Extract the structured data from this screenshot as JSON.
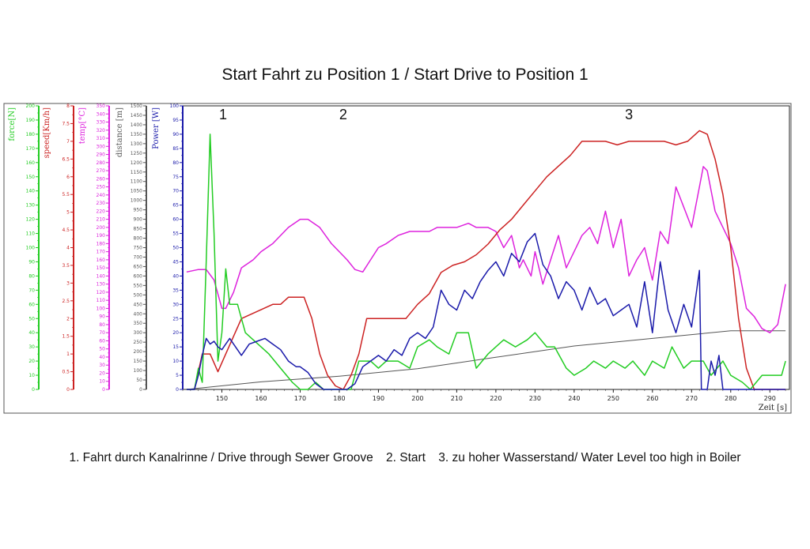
{
  "title": "Start Fahrt zu Position 1 / Start Drive to Position 1",
  "captions": [
    "1. Fahrt durch Kanalrinne / Drive through Sewer Groove",
    "2. Start",
    "3. zu hoher Wasserstand/ Water Level too high in  Boiler"
  ],
  "colors": {
    "force": "#22cc22",
    "speed": "#cc2222",
    "temp": "#dd22dd",
    "distance": "#555555",
    "power": "#1a1aaa"
  },
  "chart_data": {
    "type": "line",
    "xlabel": "Zeit [s]",
    "xlim": [
      140,
      295
    ],
    "xticks": [
      150,
      160,
      170,
      180,
      190,
      200,
      210,
      220,
      230,
      240,
      250,
      260,
      270,
      280,
      290
    ],
    "annotations": [
      {
        "text": "1",
        "x": 140
      },
      {
        "text": "2",
        "x": 181
      },
      {
        "text": "3",
        "x": 254
      }
    ],
    "axes": [
      {
        "key": "force",
        "label": "force[N]",
        "min": 0,
        "max": 200,
        "step": 10,
        "labelStep": 10
      },
      {
        "key": "speed",
        "label": "speed[Km/h]",
        "min": 0,
        "max": 8,
        "step": 0.5,
        "labelStep": 0.5
      },
      {
        "key": "temp",
        "label": "temp[°C]",
        "min": 0,
        "max": 350,
        "step": 10,
        "labelStep": 10
      },
      {
        "key": "distance",
        "label": "distance [m]",
        "min": 0,
        "max": 1500,
        "step": 50,
        "labelStep": 50
      },
      {
        "key": "power",
        "label": "Power [W]",
        "min": 0,
        "max": 100,
        "step": 5,
        "labelStep": 5
      }
    ],
    "series": [
      {
        "name": "force[N]",
        "key": "force",
        "x": [
          141,
          143,
          144,
          145,
          146,
          147,
          148,
          149,
          150,
          151,
          152,
          154,
          156,
          158,
          160,
          162,
          165,
          168,
          170,
          172,
          174,
          176,
          180,
          183,
          185,
          188,
          190,
          192,
          195,
          198,
          200,
          203,
          205,
          208,
          210,
          213,
          215,
          218,
          220,
          222,
          225,
          228,
          230,
          233,
          235,
          238,
          240,
          243,
          245,
          248,
          250,
          253,
          255,
          258,
          260,
          263,
          265,
          268,
          270,
          273,
          275,
          278,
          280,
          283,
          285,
          288,
          290,
          293,
          294
        ],
        "y": [
          0,
          0,
          15,
          5,
          90,
          180,
          110,
          20,
          40,
          85,
          60,
          60,
          40,
          35,
          30,
          25,
          15,
          5,
          0,
          0,
          5,
          0,
          0,
          0,
          20,
          20,
          15,
          20,
          20,
          15,
          30,
          35,
          30,
          25,
          40,
          40,
          15,
          25,
          30,
          35,
          30,
          35,
          40,
          30,
          30,
          15,
          10,
          15,
          20,
          15,
          20,
          15,
          20,
          10,
          20,
          15,
          30,
          15,
          20,
          20,
          10,
          20,
          10,
          5,
          0,
          10,
          10,
          10,
          20
        ]
      },
      {
        "name": "speed[Km/h]",
        "key": "speed",
        "x": [
          141,
          143,
          145,
          147,
          149,
          151,
          153,
          155,
          157,
          159,
          161,
          163,
          165,
          167,
          169,
          171,
          173,
          175,
          177,
          179,
          181,
          183,
          185,
          187,
          189,
          191,
          193,
          195,
          197,
          200,
          203,
          206,
          209,
          212,
          215,
          218,
          221,
          224,
          227,
          230,
          233,
          236,
          239,
          242,
          245,
          248,
          251,
          254,
          257,
          260,
          263,
          266,
          269,
          272,
          274,
          276,
          278,
          280,
          282,
          284,
          286,
          290,
          294
        ],
        "y": [
          0,
          0,
          1,
          1,
          0.5,
          1,
          1.5,
          2,
          2.1,
          2.2,
          2.3,
          2.4,
          2.4,
          2.6,
          2.6,
          2.6,
          2,
          1,
          0.4,
          0.1,
          0,
          0.4,
          1,
          2,
          2,
          2,
          2,
          2,
          2,
          2.4,
          2.7,
          3.3,
          3.5,
          3.6,
          3.8,
          4.1,
          4.5,
          4.8,
          5.2,
          5.6,
          6,
          6.3,
          6.6,
          7,
          7,
          7,
          6.9,
          7,
          7,
          7,
          7,
          6.9,
          7,
          7.3,
          7.2,
          6.5,
          5.5,
          4,
          2,
          0.6,
          0,
          0,
          0
        ]
      },
      {
        "name": "temp[°C]",
        "key": "temp",
        "x": [
          141,
          144,
          146,
          148,
          150,
          151,
          153,
          155,
          158,
          160,
          163,
          165,
          167,
          170,
          172,
          175,
          178,
          180,
          182,
          184,
          186,
          188,
          190,
          192,
          195,
          198,
          200,
          203,
          205,
          208,
          210,
          213,
          215,
          218,
          220,
          222,
          224,
          226,
          227,
          229,
          230,
          232,
          234,
          236,
          238,
          240,
          242,
          244,
          246,
          248,
          250,
          252,
          254,
          256,
          258,
          260,
          262,
          264,
          266,
          268,
          270,
          272,
          273,
          274,
          276,
          278,
          280,
          282,
          284,
          286,
          288,
          290,
          292,
          294
        ],
        "y": [
          145,
          148,
          148,
          135,
          100,
          100,
          120,
          150,
          160,
          170,
          180,
          190,
          200,
          210,
          210,
          200,
          180,
          170,
          160,
          148,
          145,
          160,
          175,
          180,
          190,
          195,
          195,
          195,
          200,
          200,
          200,
          205,
          200,
          200,
          195,
          175,
          190,
          150,
          160,
          140,
          170,
          130,
          160,
          190,
          150,
          170,
          190,
          200,
          180,
          220,
          175,
          210,
          140,
          160,
          175,
          135,
          195,
          180,
          250,
          225,
          200,
          250,
          275,
          270,
          220,
          200,
          180,
          150,
          100,
          90,
          75,
          70,
          80,
          130
        ]
      },
      {
        "name": "distance [m]",
        "key": "distance",
        "x": [
          141,
          160,
          180,
          190,
          200,
          210,
          220,
          230,
          240,
          250,
          260,
          270,
          280,
          290,
          294
        ],
        "y": [
          0,
          40,
          70,
          90,
          110,
          140,
          170,
          200,
          230,
          250,
          270,
          290,
          310,
          310,
          310
        ]
      },
      {
        "name": "Power [W]",
        "key": "power",
        "x": [
          141,
          143,
          144,
          145,
          146,
          147,
          148,
          149,
          150,
          151,
          152,
          153,
          155,
          157,
          159,
          161,
          163,
          165,
          167,
          169,
          170,
          172,
          174,
          176,
          178,
          180,
          182,
          184,
          186,
          188,
          190,
          192,
          194,
          196,
          198,
          200,
          202,
          204,
          206,
          208,
          210,
          212,
          214,
          216,
          218,
          220,
          222,
          224,
          226,
          228,
          230,
          232,
          234,
          236,
          238,
          240,
          242,
          244,
          246,
          248,
          250,
          252,
          254,
          256,
          258,
          260,
          262,
          264,
          266,
          268,
          270,
          272,
          272.5,
          273,
          274,
          275,
          276,
          277,
          278,
          280,
          282,
          284,
          286,
          288,
          290,
          292,
          294
        ],
        "y": [
          0,
          0,
          5,
          12,
          18,
          16,
          17,
          15,
          14,
          16,
          18,
          16,
          12,
          16,
          17,
          18,
          16,
          14,
          10,
          8,
          8,
          6,
          2,
          0,
          0,
          0,
          0,
          2,
          8,
          10,
          12,
          10,
          14,
          12,
          18,
          20,
          18,
          22,
          35,
          30,
          28,
          35,
          32,
          38,
          42,
          45,
          40,
          48,
          45,
          52,
          55,
          44,
          40,
          32,
          38,
          35,
          28,
          36,
          30,
          32,
          26,
          28,
          30,
          22,
          38,
          20,
          45,
          28,
          20,
          30,
          22,
          42,
          0,
          0,
          0,
          10,
          5,
          12,
          0,
          0,
          0,
          0,
          0,
          0,
          0,
          0,
          0
        ]
      }
    ]
  }
}
